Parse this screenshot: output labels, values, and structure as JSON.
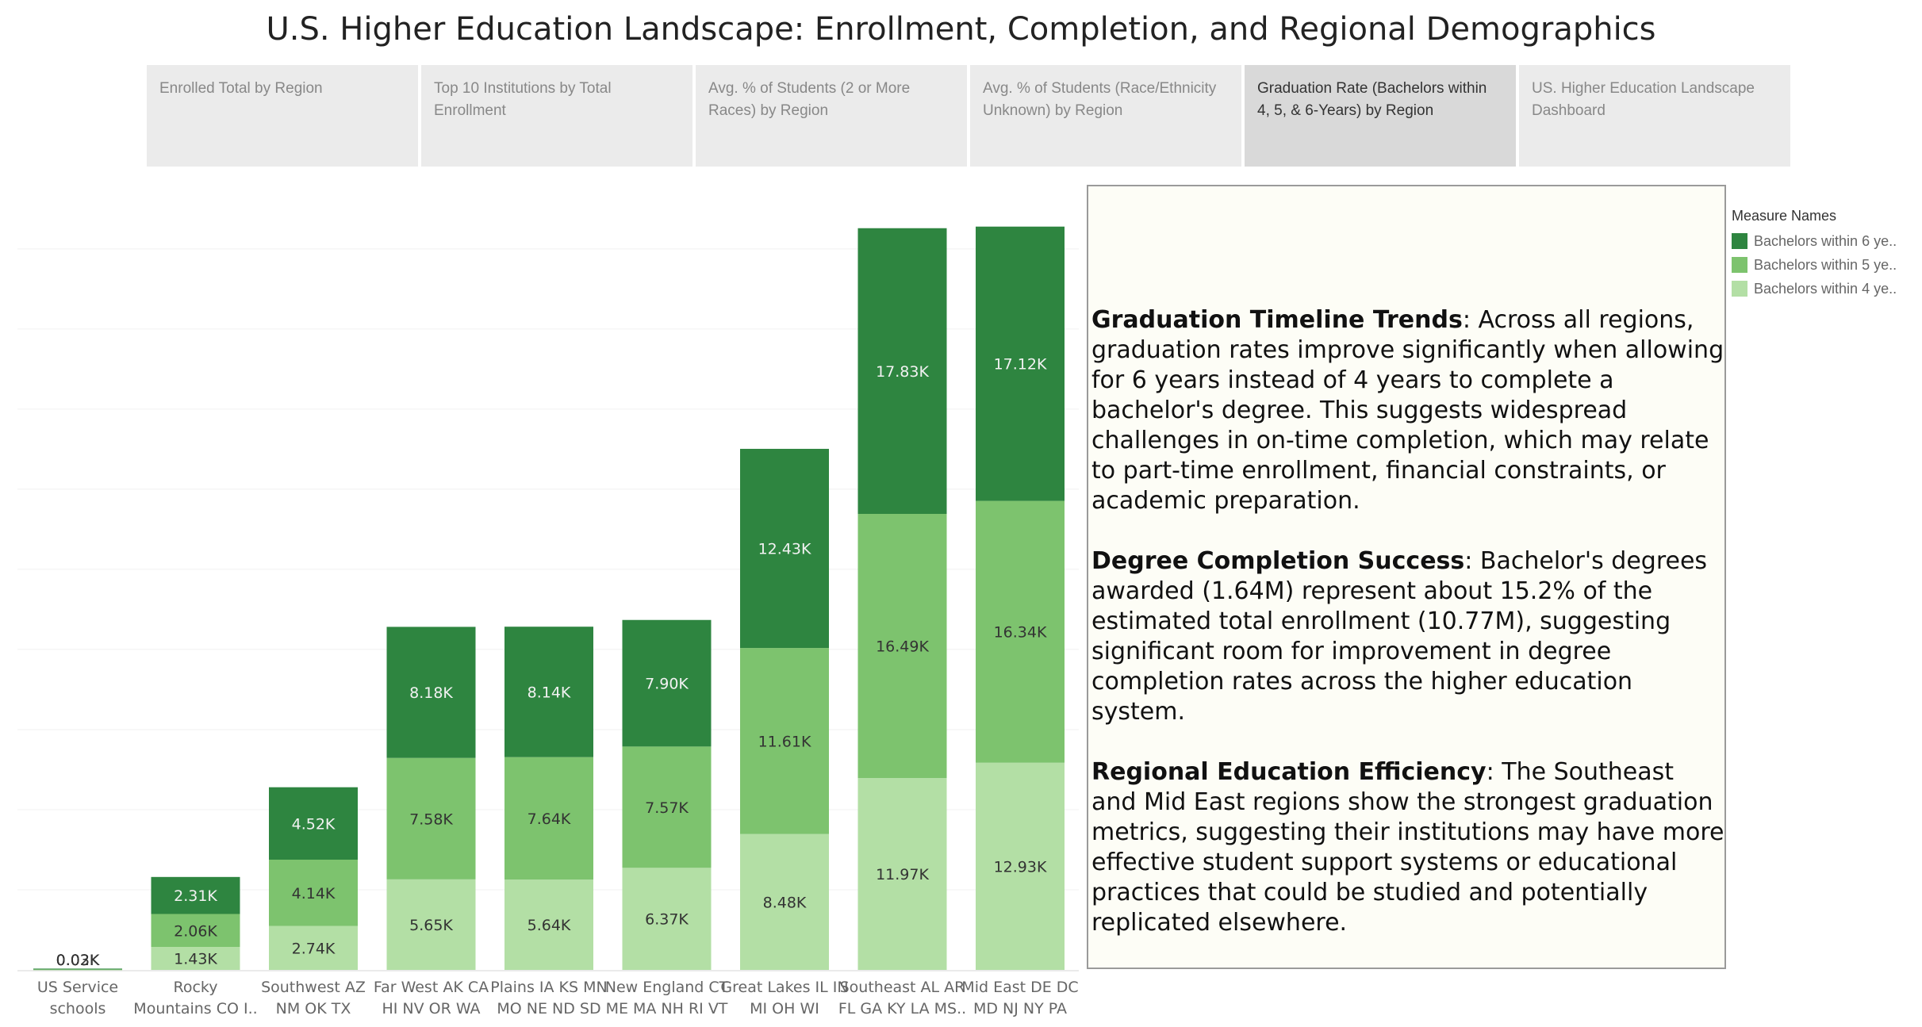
{
  "title": "U.S. Higher Education Landscape: Enrollment, Completion, and Regional Demographics",
  "tabs": [
    {
      "label": "Enrolled Total by Region",
      "active": false
    },
    {
      "label": "Top 10 Institutions by Total Enrollment",
      "active": false
    },
    {
      "label": "Avg. % of Students (2 or More Races) by Region",
      "active": false
    },
    {
      "label": "Avg. % of Students (Race/Ethnicity Unknown) by Region",
      "active": false
    },
    {
      "label": "Graduation Rate (Bachelors within 4, 5, & 6-Years) by Region",
      "active": true
    },
    {
      "label": "US.  Higher Education Landscape Dashboard",
      "active": false
    }
  ],
  "colors": {
    "six_year": "#2e8540",
    "five_year": "#7dc36e",
    "four_year": "#b3dfa5"
  },
  "legend": {
    "title": "Measure Names",
    "items": [
      {
        "label": "Bachelors within 6 ye..",
        "color": "#2e8540"
      },
      {
        "label": "Bachelors within 5 ye..",
        "color": "#7dc36e"
      },
      {
        "label": "Bachelors within 4 ye..",
        "color": "#b3dfa5"
      }
    ]
  },
  "chart_data": {
    "type": "bar",
    "stacked": true,
    "categories": [
      [
        "US Service",
        "schools"
      ],
      [
        "Rocky",
        "Mountains CO I.."
      ],
      [
        "Southwest AZ",
        "NM OK TX"
      ],
      [
        "Far West AK CA",
        "HI NV OR WA"
      ],
      [
        "Plains IA KS MN",
        "MO NE ND SD"
      ],
      [
        "New England CT",
        "ME MA NH RI VT"
      ],
      [
        "Great Lakes IL IN",
        "MI OH WI"
      ],
      [
        "Southeast AL AR",
        "FL GA KY LA MS.."
      ],
      [
        "Mid East DE DC",
        "MD NJ NY PA"
      ]
    ],
    "series": [
      {
        "key": "four_year",
        "values": [
          0.03,
          1.43,
          2.74,
          5.65,
          5.64,
          6.37,
          8.48,
          11.97,
          12.93
        ],
        "labels": [
          "0.03K",
          "1.43K",
          "2.74K",
          "5.65K",
          "5.64K",
          "6.37K",
          "8.48K",
          "11.97K",
          "12.93K"
        ]
      },
      {
        "key": "five_year",
        "values": [
          0.03,
          2.06,
          4.14,
          7.58,
          7.64,
          7.57,
          11.61,
          16.49,
          16.34
        ],
        "labels": [
          "0.03K",
          "2.06K",
          "4.14K",
          "7.58K",
          "7.64K",
          "7.57K",
          "11.61K",
          "16.49K",
          "16.34K"
        ]
      },
      {
        "key": "six_year",
        "values": [
          0.02,
          2.31,
          4.52,
          8.18,
          8.14,
          7.9,
          12.43,
          17.83,
          17.12
        ],
        "labels": [
          "0.02K",
          "2.31K",
          "4.52K",
          "8.18K",
          "8.14K",
          "7.90K",
          "12.43K",
          "17.83K",
          "17.12K"
        ]
      }
    ],
    "unit": "K",
    "ylim": [
      0,
      49
    ],
    "grid": true,
    "legend_position": "right"
  },
  "notes": [
    {
      "heading": "Graduation Timeline Trends",
      "text": ": Across all regions, graduation rates improve significantly when allowing for 6 years instead of 4 years to complete a bachelor's degree. This suggests widespread challenges in on-time completion, which may relate to part-time enrollment, financial constraints, or academic preparation."
    },
    {
      "heading": "Degree Completion Success",
      "text": ": Bachelor's degrees awarded (1.64M) represent about 15.2% of the estimated total enrollment (10.77M), suggesting significant room for improvement in degree completion rates across the higher education system."
    },
    {
      "heading": "Regional Education Efficiency",
      "text": ": The Southeast and Mid East regions show the strongest graduation metrics, suggesting their institutions may have more effective student support systems or educational practices that could be studied and potentially replicated elsewhere."
    }
  ]
}
